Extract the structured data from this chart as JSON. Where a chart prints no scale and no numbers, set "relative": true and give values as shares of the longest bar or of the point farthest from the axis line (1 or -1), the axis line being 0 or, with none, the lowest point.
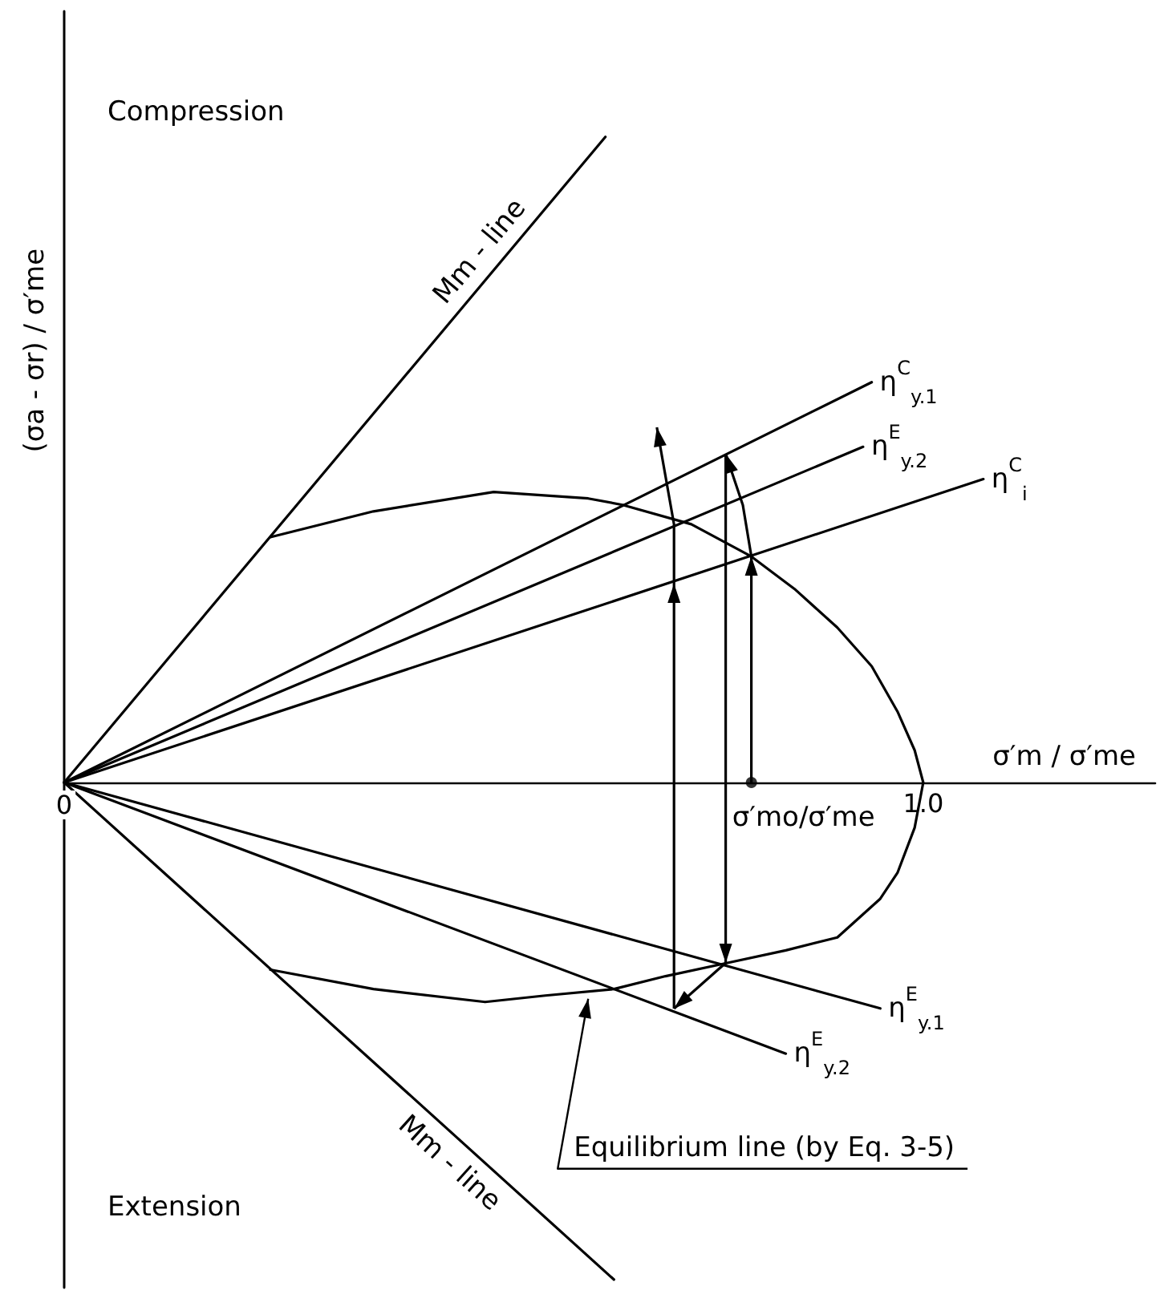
{
  "chart_data": {
    "type": "line",
    "xlabel": "σ′m / σ′me",
    "ylabel": "(σa - σr) / σ′me",
    "relative": true,
    "xlim": [
      0,
      1.27
    ],
    "xticks": [
      {
        "value": 0,
        "label": "0"
      },
      {
        "value": 1,
        "label": "1.0"
      }
    ],
    "grid": false,
    "legend": false,
    "marker": "none",
    "series": [
      {
        "name": "Mm - line",
        "color": "#000000",
        "x": [
          0,
          0.63
        ],
        "values": [
          0,
          1
        ]
      },
      {
        "name": "Mm - line",
        "color": "#000000",
        "x": [
          0,
          0.64
        ],
        "values": [
          0,
          -0.77
        ]
      },
      {
        "name": "η$^{C}$$_{y.1}$",
        "color": "#000000",
        "x": [
          0,
          0.94
        ],
        "values": [
          0,
          0.62
        ]
      },
      {
        "name": "η$^{E}$$_{y.2}$",
        "color": "#000000",
        "x": [
          0,
          0.93
        ],
        "values": [
          0,
          0.52
        ]
      },
      {
        "name": "η$^{C}$$_{i}$",
        "color": "#000000",
        "x": [
          0,
          1.07
        ],
        "values": [
          0,
          0.47
        ]
      },
      {
        "name": "η$^{E}$$_{y.1}$",
        "color": "#000000",
        "x": [
          0,
          0.95
        ],
        "values": [
          0,
          -0.35
        ]
      },
      {
        "name": "η$^{E}$$_{y.2}$",
        "color": "#000000",
        "x": [
          0,
          0.84
        ],
        "values": [
          0,
          -0.42
        ]
      },
      {
        "color": "#000000",
        "x": [
          0.24,
          0.36,
          0.5,
          0.61,
          0.65,
          0.73,
          0.8,
          0.85,
          0.9,
          0.94,
          0.97,
          0.99,
          1,
          0.99,
          0.97,
          0.95,
          0.9,
          0.84,
          0.77,
          0.7,
          0.64,
          0.56,
          0.49,
          0.36,
          0.24
        ],
        "values": [
          0.38,
          0.42,
          0.45,
          0.44,
          0.43,
          0.4,
          0.35,
          0.3,
          0.24,
          0.18,
          0.11,
          0.05,
          0,
          -0.07,
          -0.14,
          -0.18,
          -0.24,
          -0.26,
          -0.28,
          -0.3,
          -0.32,
          -0.33,
          -0.34,
          -0.32,
          -0.29
        ]
      },
      {
        "type": "scatter",
        "color": "#000000",
        "marker": "circle",
        "x": [
          0.8
        ],
        "values": [
          0
        ]
      }
    ],
    "annotations": [
      "Compression",
      "Extension",
      {
        "text": "Equilibrium line (by Eq. 3-5)",
        "x": 0.61,
        "y": -0.33
      },
      {
        "text": "σ′mo/σ′me",
        "x": 0.8,
        "y": 0
      }
    ]
  }
}
